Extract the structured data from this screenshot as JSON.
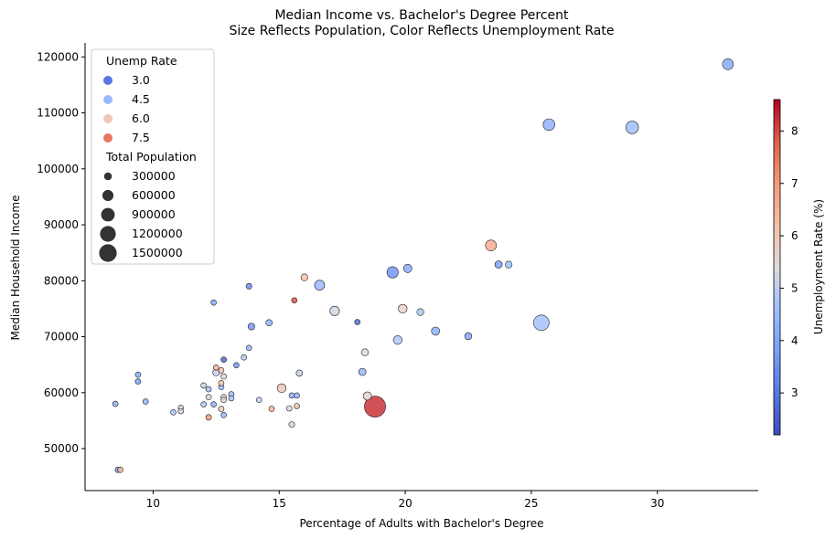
{
  "chart_data": {
    "type": "scatter",
    "title": "Median Income vs. Bachelor's Degree Percent",
    "subtitle": "Size Reflects Population, Color Reflects Unemployment Rate",
    "xlabel": "Percentage of Adults with Bachelor's Degree",
    "ylabel": "Median Household Income",
    "xlim": [
      7.3,
      34.0
    ],
    "ylim": [
      42500,
      122500
    ],
    "x_ticks": [
      10,
      15,
      20,
      25,
      30
    ],
    "y_ticks": [
      50000,
      60000,
      70000,
      80000,
      90000,
      100000,
      110000,
      120000
    ],
    "grid": false,
    "colorbar": {
      "label": "Unemployment Rate (%)",
      "range": [
        2.2,
        8.6
      ],
      "ticks": [
        3,
        4,
        5,
        6,
        7,
        8
      ],
      "colormap": "coolwarm"
    },
    "legend": {
      "position": "top-left",
      "color_title": "Unemp Rate",
      "color_entries": [
        {
          "label": "3.0",
          "value": 3.0
        },
        {
          "label": "4.5",
          "value": 4.5
        },
        {
          "label": "6.0",
          "value": 6.0
        },
        {
          "label": "7.5",
          "value": 7.5
        }
      ],
      "size_title": "Total Population",
      "size_entries": [
        {
          "label": "300000",
          "value": 300000
        },
        {
          "label": "600000",
          "value": 600000
        },
        {
          "label": "900000",
          "value": 900000
        },
        {
          "label": "1200000",
          "value": 1200000
        },
        {
          "label": "1500000",
          "value": 1500000
        }
      ]
    },
    "points": [
      {
        "x": 32.8,
        "y": 118700,
        "unemp": 4.1,
        "pop": 380000
      },
      {
        "x": 25.7,
        "y": 107900,
        "unemp": 4.3,
        "pop": 430000
      },
      {
        "x": 29.0,
        "y": 107400,
        "unemp": 4.6,
        "pop": 500000
      },
      {
        "x": 23.4,
        "y": 86300,
        "unemp": 6.6,
        "pop": 380000
      },
      {
        "x": 23.7,
        "y": 82900,
        "unemp": 3.8,
        "pop": 170000
      },
      {
        "x": 24.1,
        "y": 82900,
        "unemp": 4.6,
        "pop": 150000
      },
      {
        "x": 19.5,
        "y": 81500,
        "unemp": 3.6,
        "pop": 400000
      },
      {
        "x": 20.1,
        "y": 82200,
        "unemp": 4.1,
        "pop": 220000
      },
      {
        "x": 16.0,
        "y": 80600,
        "unemp": 6.2,
        "pop": 150000
      },
      {
        "x": 16.6,
        "y": 79200,
        "unemp": 4.5,
        "pop": 310000
      },
      {
        "x": 13.8,
        "y": 79000,
        "unemp": 3.5,
        "pop": 110000
      },
      {
        "x": 12.4,
        "y": 76100,
        "unemp": 4.0,
        "pop": 80000
      },
      {
        "x": 15.6,
        "y": 76500,
        "unemp": 7.9,
        "pop": 80000
      },
      {
        "x": 17.2,
        "y": 74600,
        "unemp": 5.2,
        "pop": 280000
      },
      {
        "x": 19.9,
        "y": 75000,
        "unemp": 5.7,
        "pop": 240000
      },
      {
        "x": 20.6,
        "y": 74400,
        "unemp": 4.8,
        "pop": 150000
      },
      {
        "x": 14.6,
        "y": 72500,
        "unemp": 4.3,
        "pop": 130000
      },
      {
        "x": 13.9,
        "y": 71800,
        "unemp": 3.7,
        "pop": 140000
      },
      {
        "x": 18.1,
        "y": 72600,
        "unemp": 2.9,
        "pop": 60000
      },
      {
        "x": 25.4,
        "y": 72500,
        "unemp": 4.7,
        "pop": 750000
      },
      {
        "x": 21.2,
        "y": 71000,
        "unemp": 4.2,
        "pop": 210000
      },
      {
        "x": 22.5,
        "y": 70100,
        "unemp": 4.0,
        "pop": 160000
      },
      {
        "x": 19.7,
        "y": 69400,
        "unemp": 4.8,
        "pop": 240000
      },
      {
        "x": 13.8,
        "y": 68000,
        "unemp": 4.4,
        "pop": 80000
      },
      {
        "x": 18.4,
        "y": 67200,
        "unemp": 5.6,
        "pop": 160000
      },
      {
        "x": 13.6,
        "y": 66300,
        "unemp": 4.9,
        "pop": 80000
      },
      {
        "x": 12.8,
        "y": 65900,
        "unemp": 2.8,
        "pop": 80000
      },
      {
        "x": 13.3,
        "y": 64900,
        "unemp": 3.6,
        "pop": 80000
      },
      {
        "x": 12.5,
        "y": 64500,
        "unemp": 6.5,
        "pop": 70000
      },
      {
        "x": 12.7,
        "y": 64000,
        "unemp": 6.1,
        "pop": 70000
      },
      {
        "x": 12.5,
        "y": 63600,
        "unemp": 5.1,
        "pop": 140000
      },
      {
        "x": 15.8,
        "y": 63500,
        "unemp": 5.1,
        "pop": 130000
      },
      {
        "x": 18.3,
        "y": 63700,
        "unemp": 4.4,
        "pop": 170000
      },
      {
        "x": 9.4,
        "y": 63200,
        "unemp": 4.1,
        "pop": 70000
      },
      {
        "x": 12.8,
        "y": 62900,
        "unemp": 5.4,
        "pop": 70000
      },
      {
        "x": 9.4,
        "y": 62000,
        "unemp": 3.9,
        "pop": 70000
      },
      {
        "x": 12.7,
        "y": 61700,
        "unemp": 6.0,
        "pop": 60000
      },
      {
        "x": 12.0,
        "y": 61300,
        "unemp": 5.1,
        "pop": 60000
      },
      {
        "x": 12.7,
        "y": 61000,
        "unemp": 4.6,
        "pop": 90000
      },
      {
        "x": 12.2,
        "y": 60600,
        "unemp": 4.7,
        "pop": 80000
      },
      {
        "x": 15.1,
        "y": 60800,
        "unemp": 5.9,
        "pop": 240000
      },
      {
        "x": 13.1,
        "y": 59700,
        "unemp": 4.7,
        "pop": 80000
      },
      {
        "x": 15.5,
        "y": 59500,
        "unemp": 4.2,
        "pop": 90000
      },
      {
        "x": 15.7,
        "y": 59500,
        "unemp": 4.3,
        "pop": 90000
      },
      {
        "x": 18.5,
        "y": 59400,
        "unemp": 5.6,
        "pop": 220000
      },
      {
        "x": 12.2,
        "y": 59200,
        "unemp": 5.3,
        "pop": 70000
      },
      {
        "x": 12.8,
        "y": 59200,
        "unemp": 5.7,
        "pop": 70000
      },
      {
        "x": 13.1,
        "y": 59000,
        "unemp": 4.8,
        "pop": 70000
      },
      {
        "x": 12.8,
        "y": 58700,
        "unemp": 5.5,
        "pop": 70000
      },
      {
        "x": 14.2,
        "y": 58700,
        "unemp": 5.0,
        "pop": 70000
      },
      {
        "x": 9.7,
        "y": 58400,
        "unemp": 4.4,
        "pop": 70000
      },
      {
        "x": 8.5,
        "y": 58000,
        "unemp": 4.3,
        "pop": 70000
      },
      {
        "x": 12.0,
        "y": 57900,
        "unemp": 4.8,
        "pop": 60000
      },
      {
        "x": 12.4,
        "y": 57900,
        "unemp": 4.2,
        "pop": 60000
      },
      {
        "x": 15.7,
        "y": 57600,
        "unemp": 6.2,
        "pop": 70000
      },
      {
        "x": 18.8,
        "y": 57500,
        "unemp": 8.2,
        "pop": 1400000
      },
      {
        "x": 11.1,
        "y": 57300,
        "unemp": 5.1,
        "pop": 70000
      },
      {
        "x": 15.4,
        "y": 57200,
        "unemp": 5.4,
        "pop": 90000
      },
      {
        "x": 14.7,
        "y": 57100,
        "unemp": 6.4,
        "pop": 70000
      },
      {
        "x": 12.7,
        "y": 57100,
        "unemp": 5.8,
        "pop": 70000
      },
      {
        "x": 11.1,
        "y": 56700,
        "unemp": 5.2,
        "pop": 70000
      },
      {
        "x": 10.8,
        "y": 56500,
        "unemp": 4.7,
        "pop": 50000
      },
      {
        "x": 12.8,
        "y": 56000,
        "unemp": 4.4,
        "pop": 90000
      },
      {
        "x": 12.2,
        "y": 55600,
        "unemp": 7.0,
        "pop": 100000
      },
      {
        "x": 15.5,
        "y": 54300,
        "unemp": 5.2,
        "pop": 110000
      },
      {
        "x": 8.6,
        "y": 46200,
        "unemp": 3.7,
        "pop": 60000
      },
      {
        "x": 8.7,
        "y": 46200,
        "unemp": 6.4,
        "pop": 50000
      }
    ]
  }
}
